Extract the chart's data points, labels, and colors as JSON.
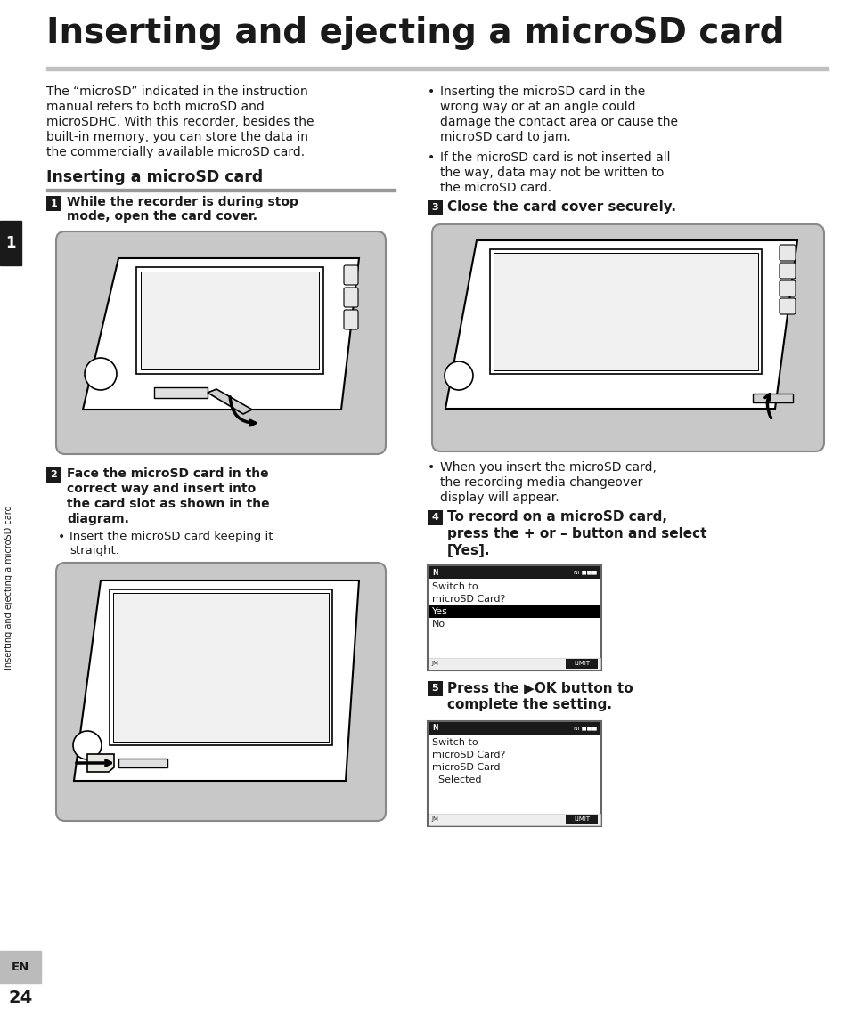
{
  "title": "Inserting and ejecting a microSD card",
  "bg_color": "#ffffff",
  "sidebar_text": "Inserting and ejecting a microSD card",
  "intro_text_line1": "The “microSD” indicated in the instruction",
  "intro_text_line2": "manual refers to both microSD and",
  "intro_text_line3": "microSDHC. With this recorder, besides the",
  "intro_text_line4": "built-in memory, you can store the data in",
  "intro_text_line5": "the commercially available microSD card.",
  "section_title": "Inserting a microSD card",
  "step1_line1": "While the recorder is during stop",
  "step1_line2": "mode, open the card cover.",
  "step2_line1": "Face the microSD card in the",
  "step2_line2": "correct way and insert into",
  "step2_line3": "the card slot as shown in the",
  "step2_line4": "diagram.",
  "step2_bullet": "Insert the microSD card keeping it",
  "step2_bullet2": "straight.",
  "step3_label": "Close the card cover securely.",
  "bullet1_line1": "Inserting the microSD card in the",
  "bullet1_line2": "wrong way or at an angle could",
  "bullet1_line3": "damage the contact area or cause the",
  "bullet1_line4": "microSD card to jam.",
  "bullet2_line1": "If the microSD card is not inserted all",
  "bullet2_line2": "the way, data may not be written to",
  "bullet2_line3": "the microSD card.",
  "step3_sub_line1": "When you insert the microSD card,",
  "step3_sub_line2": "the recording media changeover",
  "step3_sub_line3": "display will appear.",
  "step4_line1": "To record on a microSD card,",
  "step4_line2": "press the + or – button and select",
  "step4_line3": "[Yes].",
  "step5_line1": "Press the ▶OK button to",
  "step5_line2": "complete the setting.",
  "img_bg": "#c8c8c8",
  "img_border": "#888888",
  "screen_bg": "#ffffff",
  "screen_hdr": "#2a2a2a",
  "screen_border": "#555555",
  "yes_bg": "#000000",
  "footer_bg": "#bbbbbb"
}
